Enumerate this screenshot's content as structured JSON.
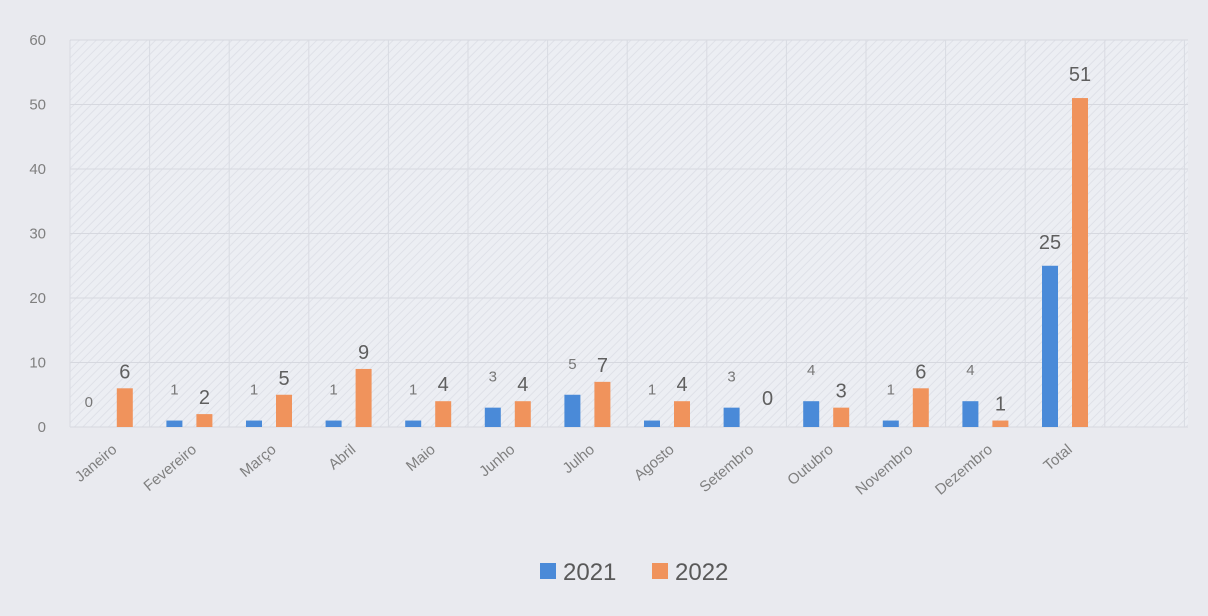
{
  "chart_data": {
    "type": "bar",
    "categories": [
      "Janeiro",
      "Fevereiro",
      "Março",
      "Abril",
      "Maio",
      "Junho",
      "Julho",
      "Agosto",
      "Setembro",
      "Outubro",
      "Novembro",
      "Dezembro",
      "Total"
    ],
    "series": [
      {
        "name": "2021",
        "color": "#4a8ad8",
        "values": [
          0,
          1,
          1,
          1,
          1,
          3,
          5,
          1,
          3,
          4,
          1,
          4,
          25
        ]
      },
      {
        "name": "2022",
        "color": "#f0935c",
        "values": [
          6,
          2,
          5,
          9,
          4,
          4,
          7,
          4,
          0,
          3,
          6,
          1,
          51
        ]
      }
    ],
    "title": "",
    "xlabel": "",
    "ylabel": "",
    "ylim": [
      0,
      60
    ],
    "yticks": [
      0,
      10,
      20,
      30,
      40,
      50,
      60
    ],
    "grid": true,
    "legend": "bottom-center",
    "data_labels": true
  }
}
